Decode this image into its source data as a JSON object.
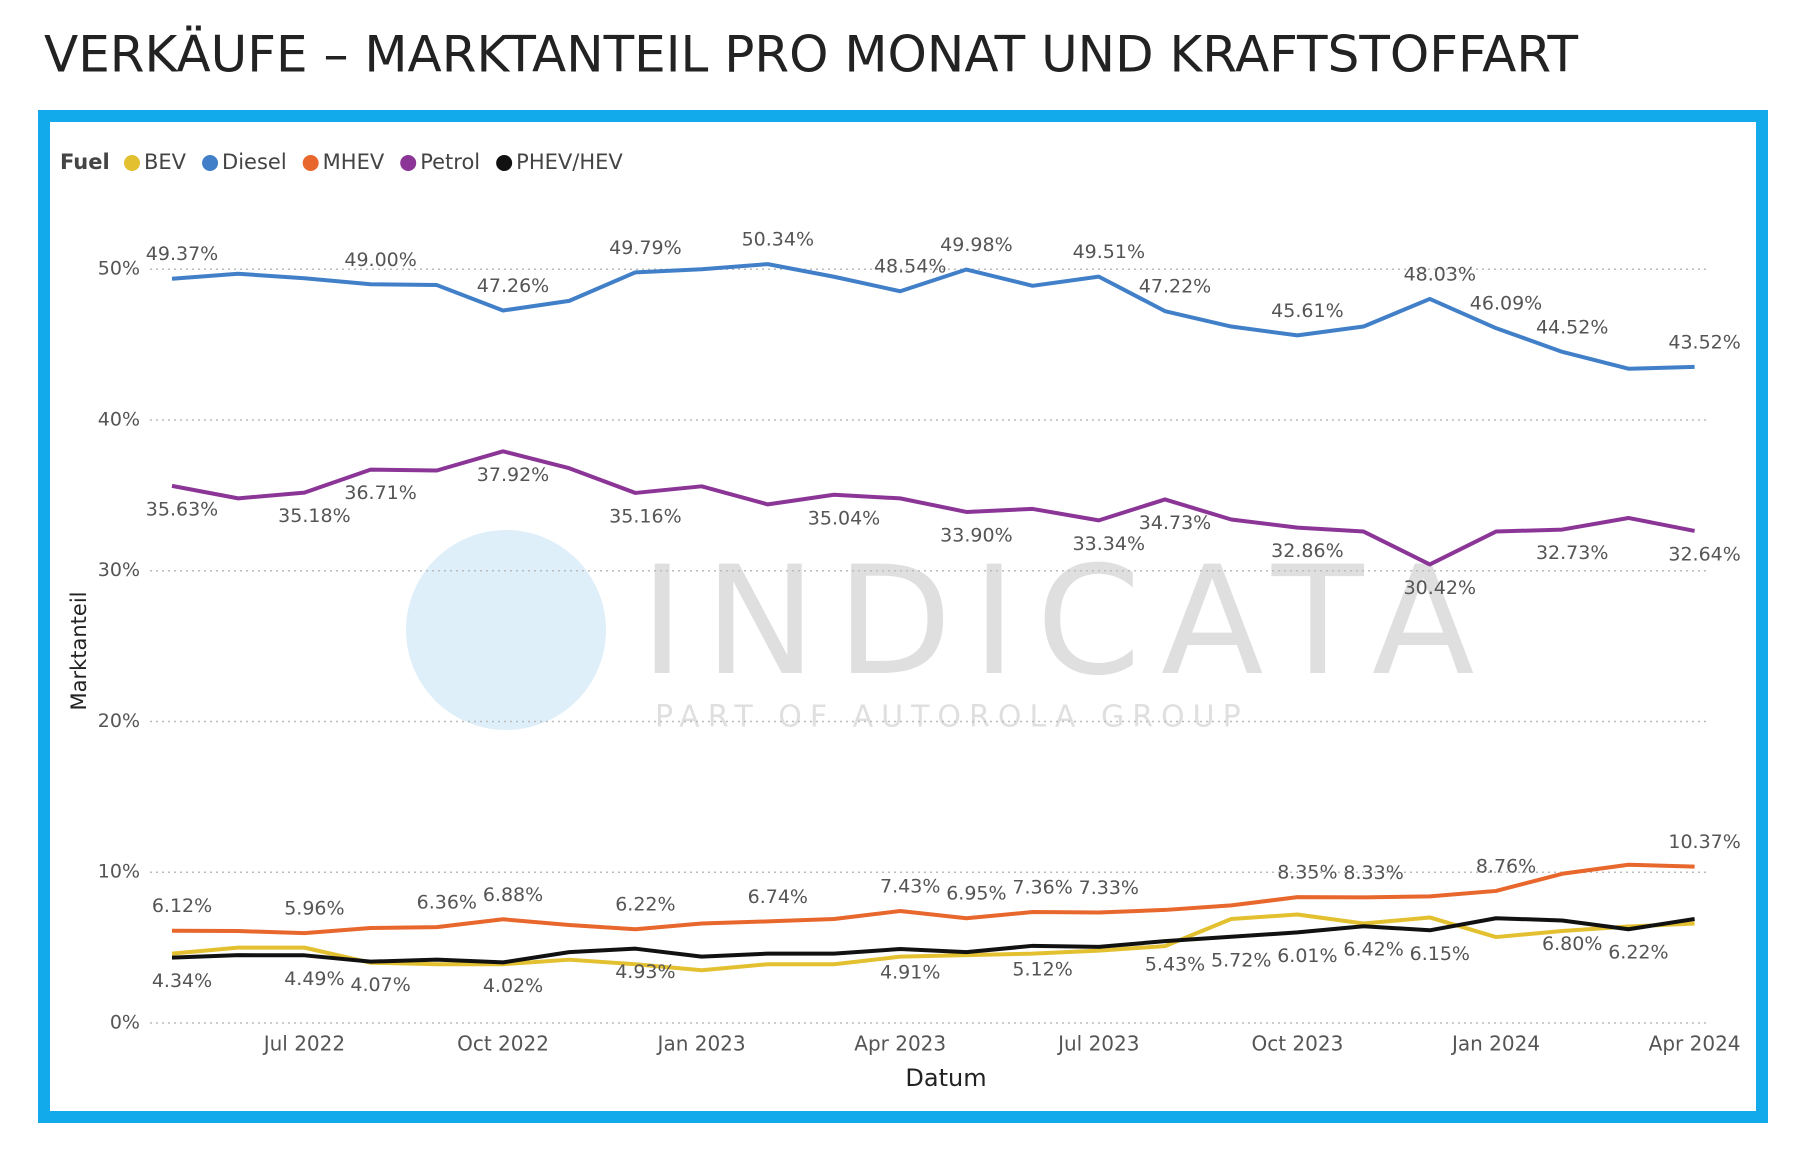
{
  "chart_data": {
    "type": "line",
    "title": "VERKÄUFE – MARKTANTEIL PRO MONAT UND KRAFTSTOFFART",
    "legend_title": "Fuel",
    "x_label": "Datum",
    "y_label": "Marktanteil",
    "categories": [
      null,
      null,
      "Jul 2022",
      null,
      null,
      "Oct 2022",
      null,
      null,
      "Jan 2023",
      null,
      null,
      "Apr 2023",
      null,
      null,
      "Jul 2023",
      null,
      null,
      "Oct 2023",
      null,
      null,
      "Jan 2024",
      null,
      null,
      "Apr 2024"
    ],
    "ylim": [
      0,
      53
    ],
    "yticks": [
      {
        "value": 0,
        "label": "0%"
      },
      {
        "value": 10,
        "label": "10%"
      },
      {
        "value": 20,
        "label": "20%"
      },
      {
        "value": 30,
        "label": "30%"
      },
      {
        "value": 40,
        "label": "40%"
      },
      {
        "value": 50,
        "label": "50%"
      }
    ],
    "grid": true,
    "legend": "top-left",
    "series": [
      {
        "name": "BEV",
        "color": "#e3c02f",
        "label_side": "below",
        "values": [
          4.6,
          5.0,
          5.0,
          4.0,
          3.9,
          3.9,
          4.2,
          3.9,
          3.5,
          3.9,
          3.9,
          4.4,
          4.5,
          4.6,
          4.8,
          5.1,
          6.9,
          7.2,
          6.6,
          7.0,
          5.7,
          6.1,
          6.4,
          6.6
        ],
        "value_labels": [
          null,
          null,
          null,
          null,
          null,
          null,
          null,
          null,
          null,
          null,
          null,
          null,
          null,
          null,
          null,
          null,
          null,
          null,
          null,
          null,
          null,
          null,
          null,
          null
        ]
      },
      {
        "name": "Diesel",
        "color": "#4180c8",
        "label_side": "above",
        "values": [
          49.37,
          49.7,
          49.4,
          49.0,
          48.95,
          47.26,
          47.9,
          49.79,
          50.0,
          50.34,
          49.5,
          48.54,
          49.98,
          48.9,
          49.51,
          47.22,
          46.2,
          45.61,
          46.2,
          48.03,
          46.09,
          44.52,
          43.4,
          43.52
        ],
        "value_labels": [
          "49.37%",
          null,
          null,
          "49.00%",
          null,
          "47.26%",
          null,
          "49.79%",
          null,
          "50.34%",
          null,
          "48.54%",
          "49.98%",
          null,
          "49.51%",
          "47.22%",
          null,
          "45.61%",
          null,
          "48.03%",
          "46.09%",
          "44.52%",
          null,
          "43.52%"
        ]
      },
      {
        "name": "MHEV",
        "color": "#e8672d",
        "label_side": "above",
        "values": [
          6.12,
          6.1,
          5.96,
          6.3,
          6.36,
          6.88,
          6.5,
          6.22,
          6.6,
          6.74,
          6.9,
          7.43,
          6.95,
          7.36,
          7.33,
          7.5,
          7.8,
          8.35,
          8.33,
          8.4,
          8.76,
          9.9,
          10.5,
          10.37
        ],
        "value_labels": [
          "6.12%",
          null,
          "5.96%",
          null,
          "6.36%",
          "6.88%",
          null,
          "6.22%",
          null,
          "6.74%",
          null,
          "7.43%",
          "6.95%",
          "7.36%",
          "7.33%",
          null,
          null,
          "8.35%",
          "8.33%",
          null,
          "8.76%",
          null,
          null,
          "10.37%"
        ]
      },
      {
        "name": "Petrol",
        "color": "#8b3597",
        "label_side": "below",
        "values": [
          35.63,
          34.8,
          35.18,
          36.71,
          36.65,
          37.92,
          36.8,
          35.16,
          35.6,
          34.4,
          35.04,
          34.8,
          33.9,
          34.1,
          33.34,
          34.73,
          33.4,
          32.86,
          32.6,
          30.42,
          32.6,
          32.73,
          33.5,
          32.64
        ],
        "value_labels": [
          "35.63%",
          null,
          "35.18%",
          "36.71%",
          null,
          "37.92%",
          null,
          "35.16%",
          null,
          null,
          "35.04%",
          null,
          "33.90%",
          null,
          "33.34%",
          "34.73%",
          null,
          "32.86%",
          null,
          "30.42%",
          null,
          "32.73%",
          null,
          "32.64%"
        ]
      },
      {
        "name": "PHEV/HEV",
        "color": "#111111",
        "label_side": "below",
        "values": [
          4.34,
          4.5,
          4.49,
          4.07,
          4.2,
          4.02,
          4.7,
          4.93,
          4.4,
          4.6,
          4.6,
          4.91,
          4.7,
          5.12,
          5.05,
          5.43,
          5.72,
          6.01,
          6.42,
          6.15,
          6.95,
          6.8,
          6.22,
          6.9
        ],
        "value_labels": [
          "4.34%",
          null,
          "4.49%",
          "4.07%",
          null,
          "4.02%",
          null,
          "4.93%",
          null,
          null,
          null,
          "4.91%",
          null,
          "5.12%",
          null,
          "5.43%",
          "5.72%",
          "6.01%",
          "6.42%",
          "6.15%",
          null,
          "6.80%",
          "6.22%",
          null
        ]
      }
    ]
  },
  "watermark": {
    "text": "INDICATA",
    "subtext": "PART OF AUTOROLA GROUP"
  }
}
